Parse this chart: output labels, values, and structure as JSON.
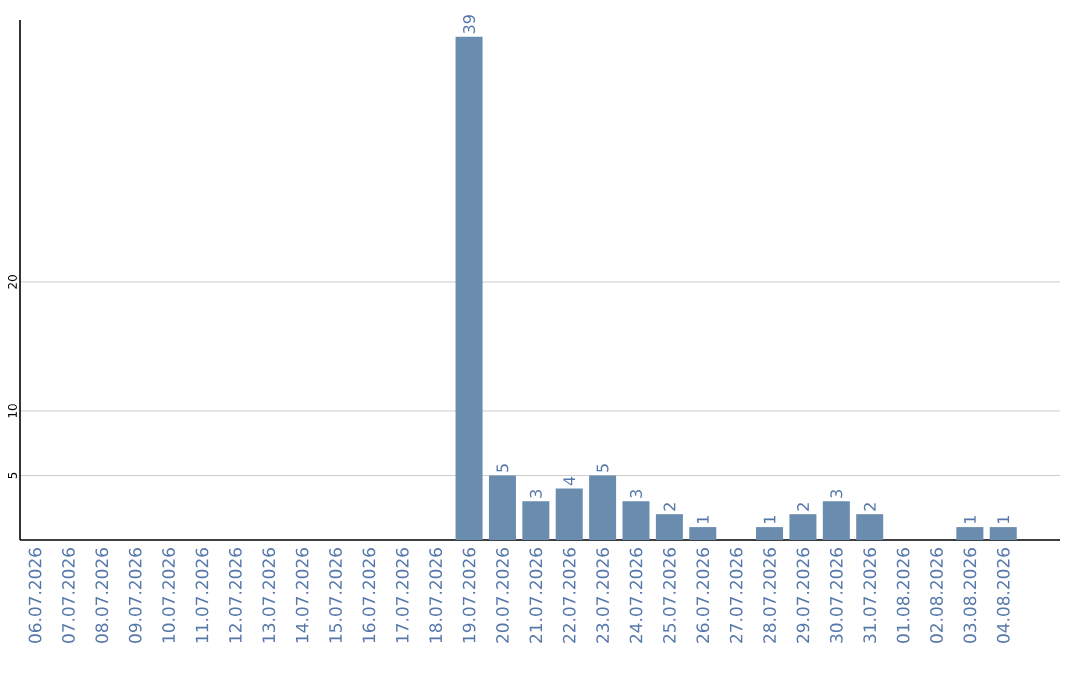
{
  "chart_data": {
    "type": "bar",
    "categories": [
      "06.07.2026",
      "07.07.2026",
      "08.07.2026",
      "09.07.2026",
      "10.07.2026",
      "11.07.2026",
      "12.07.2026",
      "13.07.2026",
      "14.07.2026",
      "15.07.2026",
      "16.07.2026",
      "17.07.2026",
      "18.07.2026",
      "19.07.2026",
      "20.07.2026",
      "21.07.2026",
      "22.07.2026",
      "23.07.2026",
      "24.07.2026",
      "25.07.2026",
      "26.07.2026",
      "27.07.2026",
      "28.07.2026",
      "29.07.2026",
      "30.07.2026",
      "31.07.2026",
      "01.08.2026",
      "02.08.2026",
      "03.08.2026",
      "04.08.2026"
    ],
    "values": [
      0,
      0,
      0,
      0,
      0,
      0,
      0,
      0,
      0,
      0,
      0,
      0,
      0,
      39,
      5,
      3,
      4,
      5,
      3,
      2,
      1,
      0,
      1,
      2,
      3,
      2,
      0,
      0,
      1,
      1
    ],
    "value_labels": [
      null,
      null,
      null,
      null,
      null,
      null,
      null,
      null,
      null,
      null,
      null,
      null,
      null,
      "39",
      "5",
      "3",
      "4",
      "5",
      "3",
      "2",
      "1",
      null,
      "1",
      "2",
      "3",
      "2",
      null,
      null,
      "1",
      "1"
    ],
    "color": "#6a8caf",
    "ylim": [
      0,
      40.3
    ],
    "yticks": [
      5,
      10,
      20
    ],
    "grid": "y"
  }
}
